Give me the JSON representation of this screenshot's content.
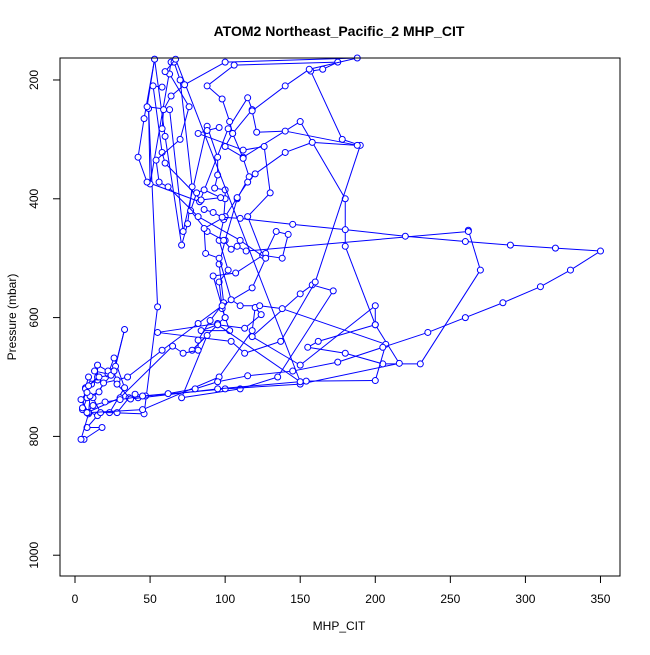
{
  "chart_data": {
    "type": "line",
    "title": "ATOM2 Northeast_Pacific_2 MHP_CIT",
    "xlabel": "MHP_CIT",
    "ylabel": "Pressure (mbar)",
    "xlim": [
      -10,
      363
    ],
    "ylim": [
      1035,
      163
    ],
    "y_reversed": true,
    "x_ticks": [
      0,
      50,
      100,
      150,
      200,
      250,
      300,
      350
    ],
    "y_ticks": [
      200,
      400,
      600,
      800,
      1000
    ],
    "grid": false,
    "legend": "none",
    "series_color": "#0000ff",
    "series": [
      {
        "points": [
          [
            6,
            805
          ],
          [
            18,
            785
          ],
          [
            8,
            785
          ],
          [
            15,
            765
          ],
          [
            5,
            755
          ],
          [
            8,
            735
          ],
          [
            7,
            718
          ],
          [
            9,
            700
          ],
          [
            11,
            712
          ],
          [
            15,
            705
          ],
          [
            13,
            690
          ],
          [
            22,
            695
          ],
          [
            26,
            668
          ],
          [
            33,
            718
          ],
          [
            23,
            760
          ],
          [
            46,
            762
          ],
          [
            55,
            582
          ],
          [
            49,
            248
          ],
          [
            50,
            375
          ],
          [
            64,
            170
          ],
          [
            66,
            170
          ],
          [
            70,
            200
          ],
          [
            78,
            380
          ],
          [
            75,
            442
          ],
          [
            71,
            478
          ],
          [
            60,
            295
          ],
          [
            53,
            165
          ],
          [
            48,
            245
          ],
          [
            63,
            250
          ],
          [
            72,
            455
          ],
          [
            88,
            278
          ],
          [
            95,
            330
          ],
          [
            95,
            360
          ],
          [
            93,
            382
          ],
          [
            100,
            385
          ],
          [
            100,
            400
          ],
          [
            99,
            435
          ],
          [
            96,
            470
          ],
          [
            102,
            520
          ],
          [
            96,
            540
          ],
          [
            98,
            585
          ],
          [
            100,
            600
          ],
          [
            103,
            622
          ],
          [
            84,
            622
          ],
          [
            95,
            612
          ],
          [
            78,
            655
          ],
          [
            88,
            630
          ],
          [
            71,
            735
          ],
          [
            110,
            720
          ],
          [
            135,
            700
          ],
          [
            172,
            555
          ],
          [
            158,
            545
          ],
          [
            150,
            560
          ],
          [
            118,
            632
          ],
          [
            150,
            680
          ],
          [
            200,
            580
          ],
          [
            200,
            612
          ],
          [
            180,
            480
          ],
          [
            180,
            400
          ],
          [
            150,
            270
          ],
          [
            112,
            330
          ],
          [
            100,
            312
          ],
          [
            105,
            290
          ],
          [
            118,
            250
          ],
          [
            115,
            230
          ],
          [
            102,
            282
          ],
          [
            83,
            405
          ],
          [
            48,
            372
          ],
          [
            42,
            330
          ],
          [
            46,
            265
          ],
          [
            53,
            165
          ]
        ]
      },
      {
        "points": [
          [
            96,
            280
          ],
          [
            88,
            285
          ],
          [
            82,
            290
          ],
          [
            112,
            318
          ],
          [
            126,
            312
          ],
          [
            130,
            390
          ],
          [
            115,
            430
          ],
          [
            125,
            495
          ],
          [
            138,
            500
          ],
          [
            142,
            460
          ],
          [
            134,
            455
          ],
          [
            127,
            492
          ],
          [
            107,
            525
          ],
          [
            92,
            530
          ],
          [
            100,
            600
          ],
          [
            95,
            610
          ],
          [
            55,
            625
          ],
          [
            104,
            640
          ],
          [
            113,
            660
          ],
          [
            137,
            640
          ],
          [
            160,
            540
          ],
          [
            190,
            310
          ],
          [
            178,
            300
          ],
          [
            157,
            185
          ],
          [
            165,
            182
          ],
          [
            175,
            170
          ],
          [
            106,
            175
          ],
          [
            88,
            210
          ],
          [
            98,
            232
          ],
          [
            103,
            270
          ],
          [
            105,
            290
          ],
          [
            112,
            332
          ],
          [
            116,
            363
          ],
          [
            108,
            400
          ],
          [
            100,
            470
          ],
          [
            96,
            510
          ],
          [
            99,
            575
          ],
          [
            90,
            605
          ],
          [
            82,
            638
          ],
          [
            82,
            655
          ],
          [
            72,
            660
          ],
          [
            65,
            648
          ],
          [
            30,
            735
          ],
          [
            8,
            760
          ],
          [
            5,
            752
          ],
          [
            7,
            720
          ],
          [
            15,
            700
          ],
          [
            15,
            680
          ],
          [
            22,
            690
          ],
          [
            27,
            682
          ],
          [
            33,
            620
          ],
          [
            26,
            690
          ],
          [
            12,
            735
          ],
          [
            17,
            760
          ],
          [
            28,
            760
          ],
          [
            36,
            735
          ],
          [
            42,
            735
          ],
          [
            40,
            729
          ],
          [
            47,
            732
          ],
          [
            100,
            720
          ],
          [
            150,
            712
          ],
          [
            216,
            677
          ],
          [
            200,
            612
          ],
          [
            162,
            640
          ],
          [
            155,
            650
          ],
          [
            180,
            660
          ],
          [
            205,
            678
          ],
          [
            230,
            678
          ],
          [
            270,
            520
          ],
          [
            262,
            453
          ],
          [
            262,
            455
          ],
          [
            114,
            488
          ],
          [
            108,
            480
          ],
          [
            104,
            485
          ],
          [
            99,
            470
          ],
          [
            88,
            455
          ],
          [
            77,
            420
          ],
          [
            81,
            390
          ],
          [
            86,
            385
          ],
          [
            97,
            398
          ],
          [
            84,
            402
          ],
          [
            60,
            340
          ],
          [
            58,
            322
          ],
          [
            52,
            210
          ],
          [
            58,
            212
          ]
        ]
      },
      {
        "points": [
          [
            4,
            805
          ],
          [
            9,
            762
          ],
          [
            10,
            732
          ],
          [
            16,
            725
          ],
          [
            19,
            710
          ],
          [
            28,
            705
          ],
          [
            35,
            700
          ],
          [
            58,
            655
          ],
          [
            82,
            610
          ],
          [
            98,
            580
          ],
          [
            118,
            550
          ],
          [
            127,
            500
          ],
          [
            110,
            470
          ],
          [
            82,
            430
          ],
          [
            62,
            380
          ],
          [
            56,
            372
          ],
          [
            54,
            335
          ],
          [
            70,
            300
          ],
          [
            76,
            245
          ],
          [
            63,
            190
          ],
          [
            60,
            186
          ],
          [
            67,
            165
          ],
          [
            150,
            708
          ],
          [
            95,
            612
          ],
          [
            113,
            618
          ],
          [
            124,
            595
          ],
          [
            120,
            583
          ],
          [
            118,
            622
          ],
          [
            96,
            700
          ],
          [
            45,
            755
          ],
          [
            9,
            760
          ],
          [
            4,
            738
          ],
          [
            8,
            726
          ],
          [
            9,
            715
          ],
          [
            16,
            700
          ],
          [
            24,
            697
          ],
          [
            26,
            690
          ],
          [
            28,
            712
          ],
          [
            37,
            737
          ],
          [
            95,
            720
          ],
          [
            154,
            707
          ],
          [
            200,
            706
          ],
          [
            207,
            645
          ],
          [
            138,
            585
          ],
          [
            123,
            580
          ],
          [
            110,
            580
          ],
          [
            104,
            570
          ],
          [
            96,
            500
          ],
          [
            87,
            492
          ],
          [
            86,
            450
          ],
          [
            100,
            430
          ],
          [
            108,
            398
          ],
          [
            115,
            372
          ],
          [
            120,
            358
          ],
          [
            140,
            322
          ],
          [
            158,
            305
          ],
          [
            188,
            310
          ],
          [
            140,
            286
          ],
          [
            121,
            288
          ],
          [
            118,
            252
          ],
          [
            140,
            210
          ],
          [
            156,
            182
          ],
          [
            188,
            163
          ],
          [
            100,
            170
          ],
          [
            73,
            208
          ],
          [
            64,
            227
          ],
          [
            59,
            250
          ],
          [
            58,
            282
          ]
        ]
      },
      {
        "points": [
          [
            8,
            760
          ],
          [
            12,
            748
          ],
          [
            20,
            742
          ],
          [
            30,
            738
          ],
          [
            45,
            732
          ],
          [
            62,
            728
          ],
          [
            80,
            720
          ],
          [
            95,
            708
          ],
          [
            115,
            698
          ],
          [
            145,
            690
          ],
          [
            175,
            675
          ],
          [
            205,
            650
          ],
          [
            235,
            625
          ],
          [
            260,
            600
          ],
          [
            285,
            575
          ],
          [
            310,
            548
          ],
          [
            330,
            520
          ],
          [
            350,
            488
          ],
          [
            320,
            483
          ],
          [
            290,
            478
          ],
          [
            260,
            472
          ],
          [
            220,
            463
          ],
          [
            180,
            452
          ],
          [
            145,
            443
          ],
          [
            110,
            433
          ],
          [
            98,
            431
          ],
          [
            92,
            423
          ],
          [
            86,
            418
          ]
        ]
      }
    ]
  }
}
